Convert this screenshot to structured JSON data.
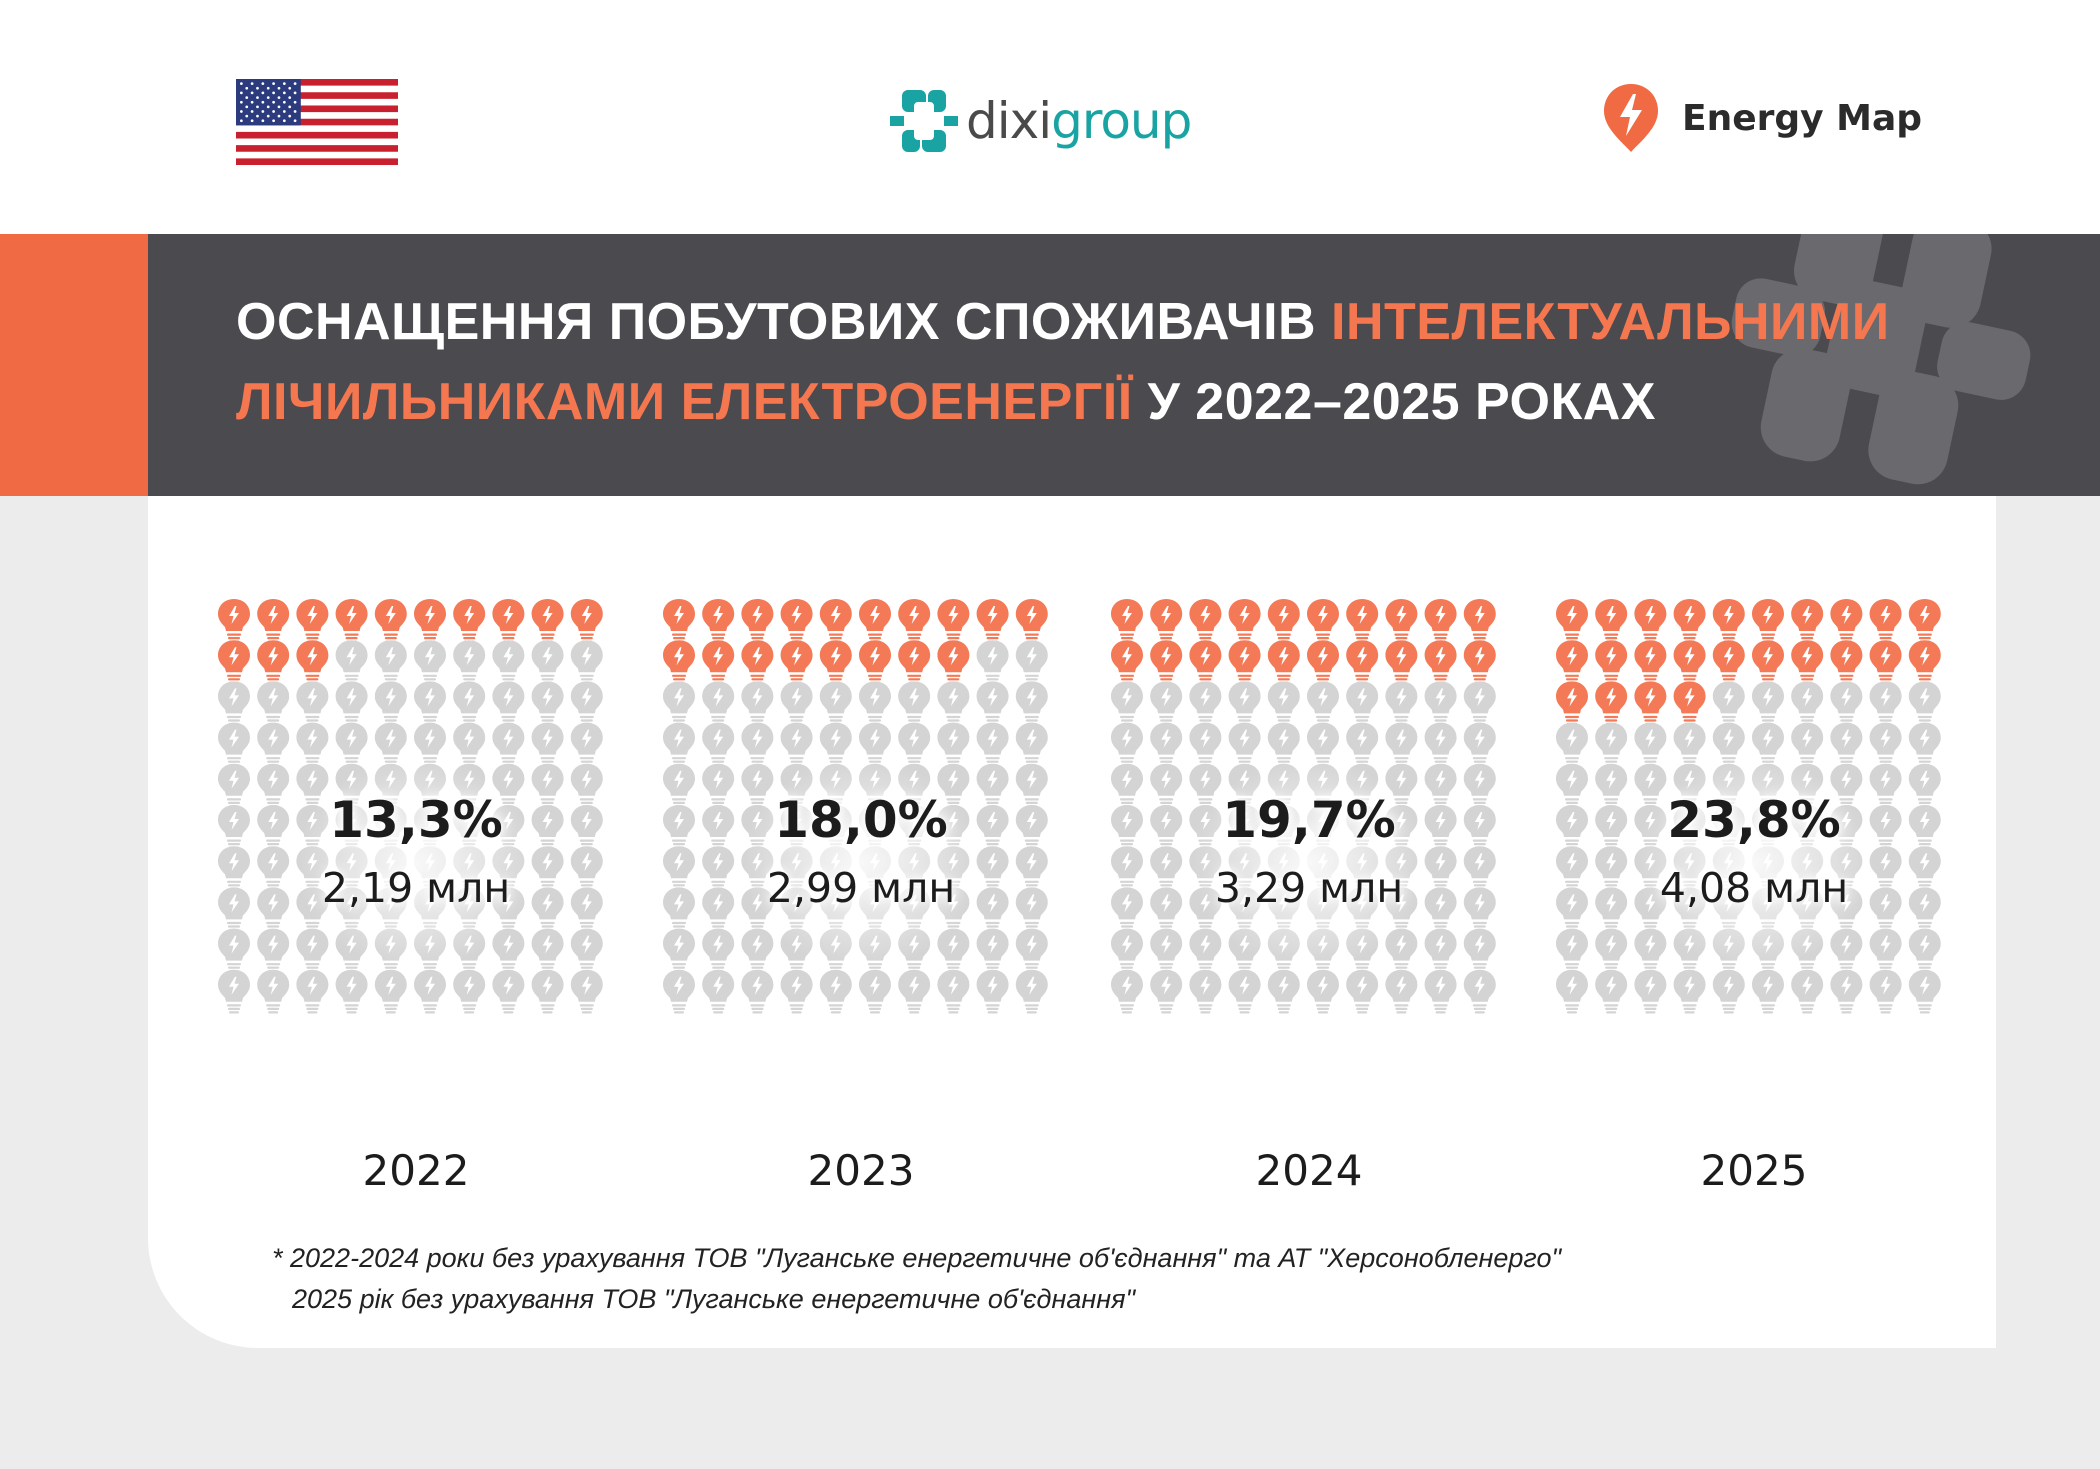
{
  "header": {
    "dixi_brand_a": "dixi",
    "dixi_brand_b": "group",
    "energy_map": "Energy Map"
  },
  "title": {
    "part1": "ОСНАЩЕННЯ ПОБУТОВИХ СПОЖИВАЧІВ ",
    "highlight1": "ІНТЕЛЕКТУАЛЬНИМИ",
    "highlight2": "ЛІЧИЛЬНИКАМИ ЕЛЕКТРОЕНЕРГІЇ",
    "part2": " У 2022–2025 РОКАХ"
  },
  "colors": {
    "accent": "#f06a44",
    "bulb_filled": "#f47a57",
    "bulb_empty": "#d4d4d4",
    "title_band": "#4a4a4f"
  },
  "chart_data": {
    "type": "pictogram",
    "icon": "lightbulb-icon",
    "grid": {
      "columns": 10,
      "rows": 10
    },
    "x": [
      "2022",
      "2023",
      "2024",
      "2025"
    ],
    "series": [
      {
        "values_pct_label": [
          "13,3%",
          "18,0%",
          "19,7%",
          "23,8%"
        ],
        "values": [
          13.3,
          18.0,
          19.7,
          23.8
        ]
      },
      {
        "values_abs_label": [
          "2,19 млн",
          "2,99 млн",
          "3,29 млн",
          "4,08 млн"
        ],
        "values": [
          2.19,
          2.99,
          3.29,
          4.08
        ]
      }
    ],
    "filled_icons": [
      13,
      18,
      20,
      24
    ]
  },
  "footnote": {
    "line1": "* 2022-2024 роки без урахування ТОВ \"Луганське енергетичне об'єднання\" та АТ \"Херсонобленерго\"",
    "line2": "2025 рік без урахування ТОВ \"Луганське енергетичне об'єднання\""
  }
}
